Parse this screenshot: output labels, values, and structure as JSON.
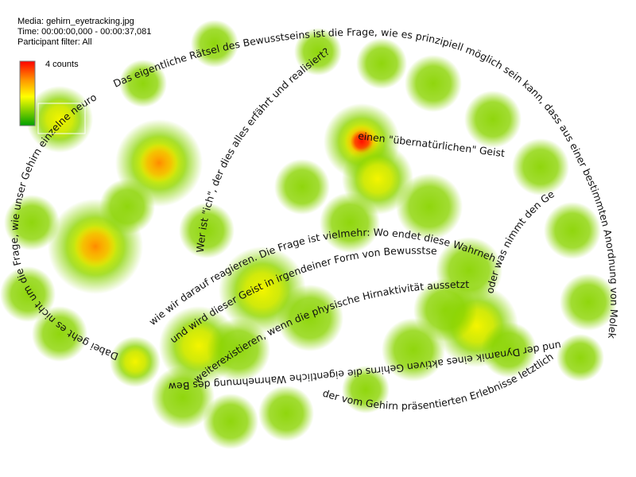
{
  "header": {
    "media": "Media: gehirn_eyetracking.jpg",
    "time": "Time: 00:00:00,000 - 00:00:37,081",
    "filter": "Participant filter: All"
  },
  "legend": {
    "label": "4 counts"
  },
  "stimulus_text": [
    "Das eigentliche Rätsel des Bewusstseins ist die Frage, wie es prinzipiell möglich sein kann, dass aus einer bestimmten Anordnung von Molekülen",
    "und der Dynamik eines aktiven Gehirns die eigentliche Wahrnehmung des Bewusstseins",
    "Dabei geht es nicht um die Frage, wie unser Gehirn einzelne neuronale",
    "Wer ist \"ich\", der dies alles erfährt und realisiert?",
    "wie wir darauf reagieren. Die Frage ist vielmehr: Wo endet diese Wahrnehmung?",
    "und wird dieser Geist in irgendeiner Form von Bewusstsein",
    "weiterexistieren, wenn die physische Hirnaktivität aussetzt?",
    "einen \"übernatürlichen\" Geist",
    "oder was nimmt den Gehirn",
    "der vom Gehirn präsentierten Erlebnisse letztlich auf?"
  ]
}
